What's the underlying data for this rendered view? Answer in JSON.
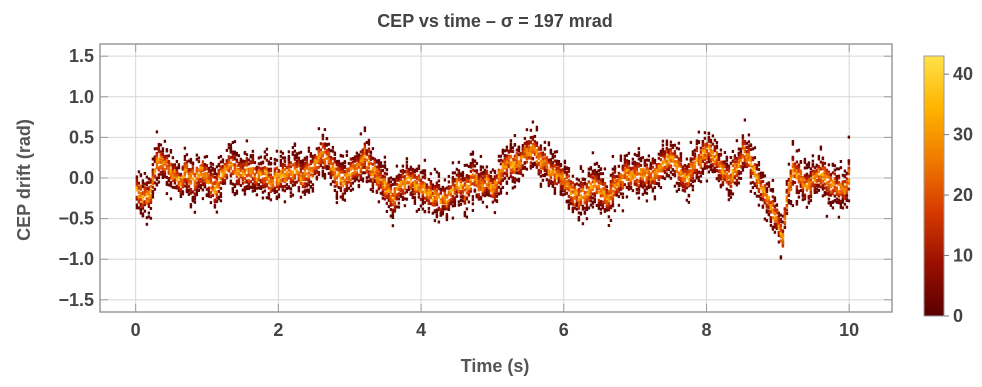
{
  "chart_data": {
    "type": "heatmap",
    "title": "CEP vs time – σ = 197 mrad",
    "xlabel": "Time (s)",
    "ylabel": "CEP drift (rad)",
    "xlim": [
      -0.5,
      10.6
    ],
    "ylim": [
      -1.65,
      1.65
    ],
    "xticks": [
      0,
      2,
      4,
      6,
      8,
      10
    ],
    "xtick_labels": [
      "0",
      "2",
      "4",
      "6",
      "8",
      "10"
    ],
    "yticks": [
      -1.5,
      -1.0,
      -0.5,
      0.0,
      0.5,
      1.0,
      1.5
    ],
    "ytick_labels": [
      "−1.5",
      "−1.0",
      "−0.5",
      "0.0",
      "0.5",
      "1.0",
      "1.5"
    ],
    "grid": true,
    "colorbar": {
      "range": [
        0,
        43
      ],
      "ticks": [
        0,
        10,
        20,
        30,
        40
      ],
      "tick_labels": [
        "0",
        "10",
        "20",
        "30",
        "40"
      ],
      "colors": [
        "#5a0000",
        "#9a0f00",
        "#d63a00",
        "#f07a00",
        "#ffb400",
        "#ffe24a"
      ]
    },
    "trace": {
      "x": [
        0.0,
        0.1,
        0.2,
        0.25,
        0.3,
        0.4,
        0.5,
        0.6,
        0.7,
        0.8,
        0.9,
        1.0,
        1.1,
        1.2,
        1.3,
        1.4,
        1.5,
        1.6,
        1.7,
        1.8,
        1.9,
        2.0,
        2.1,
        2.2,
        2.3,
        2.4,
        2.5,
        2.6,
        2.7,
        2.8,
        2.9,
        3.0,
        3.1,
        3.2,
        3.3,
        3.4,
        3.5,
        3.6,
        3.7,
        3.8,
        3.9,
        4.0,
        4.1,
        4.2,
        4.3,
        4.4,
        4.5,
        4.6,
        4.7,
        4.8,
        4.9,
        5.0,
        5.1,
        5.2,
        5.3,
        5.4,
        5.5,
        5.6,
        5.7,
        5.8,
        5.9,
        6.0,
        6.1,
        6.2,
        6.3,
        6.4,
        6.5,
        6.6,
        6.7,
        6.8,
        6.9,
        7.0,
        7.1,
        7.2,
        7.3,
        7.4,
        7.5,
        7.6,
        7.7,
        7.8,
        7.9,
        8.0,
        8.1,
        8.2,
        8.3,
        8.4,
        8.5,
        8.6,
        8.7,
        8.8,
        8.9,
        9.0,
        9.05,
        9.1,
        9.2,
        9.3,
        9.4,
        9.5,
        9.6,
        9.7,
        9.8,
        9.9,
        10.0
      ],
      "y": [
        -0.15,
        -0.25,
        -0.2,
        0.1,
        0.2,
        0.15,
        0.05,
        -0.05,
        0.05,
        -0.05,
        0.1,
        0.0,
        -0.15,
        0.05,
        0.2,
        0.1,
        0.05,
        0.1,
        0.0,
        0.05,
        -0.05,
        0.0,
        0.05,
        0.1,
        0.0,
        0.1,
        0.15,
        0.3,
        0.2,
        0.05,
        0.0,
        0.05,
        0.15,
        0.25,
        0.1,
        0.0,
        -0.15,
        -0.25,
        -0.1,
        0.0,
        -0.05,
        -0.15,
        -0.2,
        -0.25,
        -0.3,
        -0.2,
        -0.1,
        -0.15,
        0.0,
        -0.1,
        -0.05,
        -0.15,
        0.05,
        0.2,
        0.15,
        0.25,
        0.35,
        0.3,
        0.2,
        0.1,
        0.05,
        -0.05,
        -0.15,
        -0.25,
        -0.2,
        -0.1,
        -0.15,
        -0.25,
        -0.1,
        0.0,
        0.05,
        0.0,
        0.1,
        0.0,
        0.1,
        0.2,
        0.25,
        0.1,
        0.0,
        0.1,
        0.25,
        0.35,
        0.25,
        0.1,
        0.0,
        0.1,
        0.3,
        0.2,
        0.0,
        -0.2,
        -0.35,
        -0.6,
        -0.75,
        -0.3,
        0.1,
        0.0,
        -0.1,
        0.0,
        0.05,
        -0.05,
        -0.1,
        -0.15,
        0.0
      ],
      "spread": 0.22
    }
  }
}
